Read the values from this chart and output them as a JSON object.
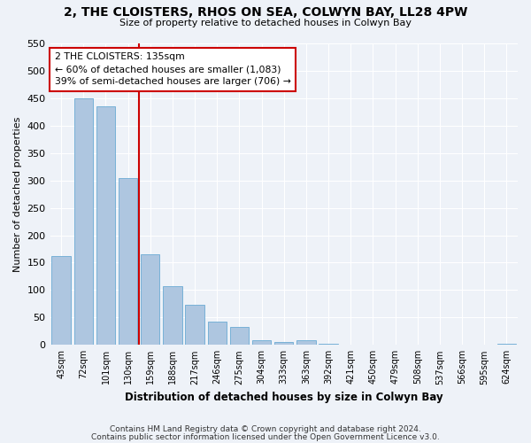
{
  "title_line1": "2, THE CLOISTERS, RHOS ON SEA, COLWYN BAY, LL28 4PW",
  "title_line2": "Size of property relative to detached houses in Colwyn Bay",
  "xlabel": "Distribution of detached houses by size in Colwyn Bay",
  "ylabel": "Number of detached properties",
  "categories": [
    "43sqm",
    "72sqm",
    "101sqm",
    "130sqm",
    "159sqm",
    "188sqm",
    "217sqm",
    "246sqm",
    "275sqm",
    "304sqm",
    "333sqm",
    "363sqm",
    "392sqm",
    "421sqm",
    "450sqm",
    "479sqm",
    "508sqm",
    "537sqm",
    "566sqm",
    "595sqm",
    "624sqm"
  ],
  "values": [
    162,
    450,
    435,
    305,
    165,
    107,
    73,
    43,
    33,
    8,
    6,
    8,
    2,
    1,
    1,
    1,
    0,
    0,
    0,
    0,
    2
  ],
  "bar_color": "#aec6e0",
  "bar_edge_color": "#6aaad4",
  "vline_x": 3.5,
  "vline_color": "#cc0000",
  "annotation_text": "2 THE CLOISTERS: 135sqm\n← 60% of detached houses are smaller (1,083)\n39% of semi-detached houses are larger (706) →",
  "annotation_box_color": "#cc0000",
  "ylim": [
    0,
    550
  ],
  "yticks": [
    0,
    50,
    100,
    150,
    200,
    250,
    300,
    350,
    400,
    450,
    500,
    550
  ],
  "footer_line1": "Contains HM Land Registry data © Crown copyright and database right 2024.",
  "footer_line2": "Contains public sector information licensed under the Open Government Licence v3.0.",
  "bg_color": "#eef2f8",
  "grid_color": "#ffffff",
  "title_fontsize": 10,
  "subtitle_fontsize": 8,
  "ylabel_fontsize": 8,
  "xlabel_fontsize": 8.5,
  "tick_fontsize": 7,
  "footer_fontsize": 6.5
}
